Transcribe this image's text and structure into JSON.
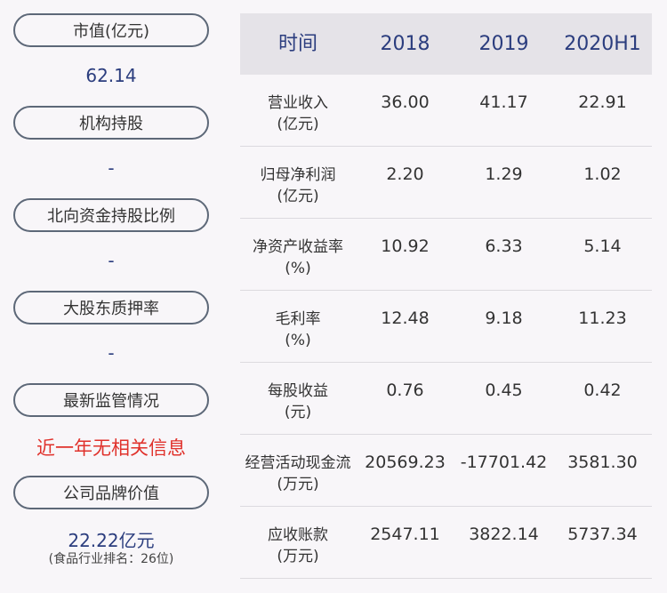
{
  "left": {
    "items": [
      {
        "label": "市值(亿元)",
        "value": "62.14"
      },
      {
        "label": "机构持股",
        "value": "-"
      },
      {
        "label": "北向资金持股比例",
        "value": "-"
      },
      {
        "label": "大股东质押率",
        "value": "-"
      },
      {
        "label": "最新监管情况",
        "value": "近一年无相关信息"
      },
      {
        "label": "公司品牌价值",
        "value": "22.22亿元",
        "note": "(食品行业排名：26位)"
      }
    ]
  },
  "table": {
    "headers": [
      "时间",
      "2018",
      "2019",
      "2020H1"
    ],
    "rows": [
      {
        "label": "营业收入",
        "unit": "(亿元)",
        "values": [
          "36.00",
          "41.17",
          "22.91"
        ]
      },
      {
        "label": "归母净利润",
        "unit": "(亿元)",
        "values": [
          "2.20",
          "1.29",
          "1.02"
        ]
      },
      {
        "label": "净资产收益率",
        "unit": "(%)",
        "values": [
          "10.92",
          "6.33",
          "5.14"
        ]
      },
      {
        "label": "毛利率",
        "unit": "(%)",
        "values": [
          "12.48",
          "9.18",
          "11.23"
        ]
      },
      {
        "label": "每股收益",
        "unit": "(元)",
        "values": [
          "0.76",
          "0.45",
          "0.42"
        ]
      },
      {
        "label": "经营活动现金流",
        "unit": "(万元)",
        "values": [
          "20569.23",
          "-17701.42",
          "3581.30"
        ]
      },
      {
        "label": "应收账款",
        "unit": "(万元)",
        "values": [
          "2547.11",
          "3822.14",
          "5737.34"
        ]
      }
    ]
  },
  "colors": {
    "value_blue": "#2b3d7e",
    "alert_red": "#e0312b",
    "pill_border": "#5d6878",
    "header_bg": "#e5e3e8",
    "background": "#f8f6f9"
  }
}
